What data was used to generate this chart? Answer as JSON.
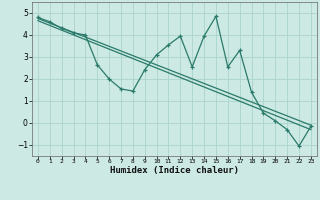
{
  "xlabel": "Humidex (Indice chaleur)",
  "ylabel": "",
  "background_color": "#cce9e4",
  "grid_color": "#aad4cc",
  "line_color": "#2a7a6a",
  "xlim": [
    -0.5,
    23.5
  ],
  "ylim": [
    -1.5,
    5.5
  ],
  "yticks": [
    -1,
    0,
    1,
    2,
    3,
    4,
    5
  ],
  "xticks": [
    0,
    1,
    2,
    3,
    4,
    5,
    6,
    7,
    8,
    9,
    10,
    11,
    12,
    13,
    14,
    15,
    16,
    17,
    18,
    19,
    20,
    21,
    22,
    23
  ],
  "line1_x": [
    0,
    1,
    2,
    3,
    4,
    5,
    6,
    7,
    8,
    9,
    10,
    11,
    12,
    13,
    14,
    15,
    16,
    17,
    18,
    19,
    20,
    21,
    22,
    23
  ],
  "line1_y": [
    4.8,
    4.6,
    4.3,
    4.1,
    4.0,
    2.65,
    2.0,
    1.55,
    1.45,
    2.42,
    3.1,
    3.55,
    3.95,
    2.55,
    3.95,
    4.85,
    2.55,
    3.3,
    1.4,
    0.45,
    0.1,
    -0.3,
    -1.05,
    -0.15
  ],
  "line2_x": [
    0,
    23
  ],
  "line2_y": [
    4.75,
    -0.1
  ],
  "line3_x": [
    0,
    23
  ],
  "line3_y": [
    4.65,
    -0.3
  ],
  "marker": "+"
}
